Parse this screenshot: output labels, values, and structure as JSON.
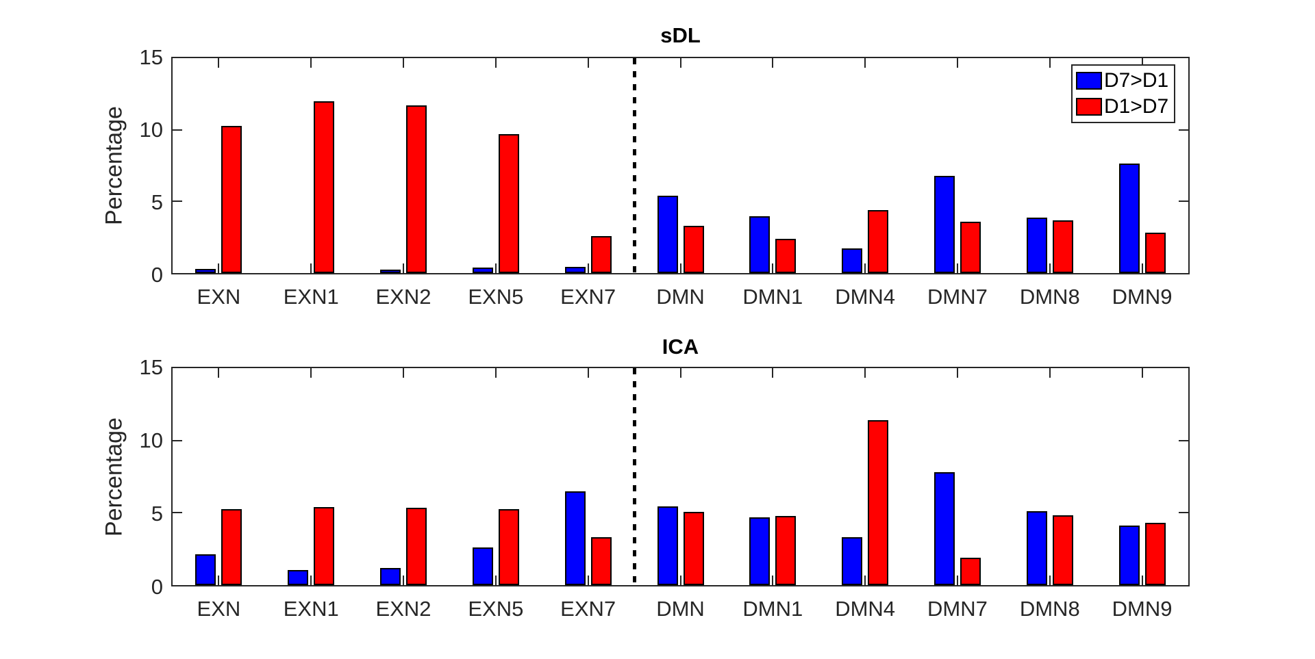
{
  "figure": {
    "background": "#ffffff"
  },
  "legend": {
    "position": "top-right",
    "items": [
      {
        "label": "D7>D1",
        "color": "#0000ff"
      },
      {
        "label": "D1>D7",
        "color": "#ff0000"
      }
    ]
  },
  "chart_data": [
    {
      "type": "bar",
      "title": "sDL",
      "xlabel": "",
      "ylabel": "Percentage",
      "ylim": [
        0,
        15
      ],
      "yticks": [
        0,
        5,
        10,
        15
      ],
      "grid": false,
      "legend_position": "top-right",
      "separator_after_index": 4,
      "separator_style": "dotted-vertical-line",
      "categories": [
        "EXN",
        "EXN1",
        "EXN2",
        "EXN5",
        "EXN7",
        "DMN",
        "DMN1",
        "DMN4",
        "DMN7",
        "DMN8",
        "DMN9"
      ],
      "series": [
        {
          "name": "D7>D1",
          "color": "#0000ff",
          "values": [
            0.3,
            0.0,
            0.25,
            0.4,
            0.45,
            5.4,
            3.95,
            1.7,
            6.8,
            3.85,
            7.65
          ]
        },
        {
          "name": "D1>D7",
          "color": "#ff0000",
          "values": [
            10.25,
            12.0,
            11.7,
            9.7,
            2.6,
            3.3,
            2.4,
            4.4,
            3.6,
            3.7,
            2.8
          ]
        }
      ]
    },
    {
      "type": "bar",
      "title": "ICA",
      "xlabel": "",
      "ylabel": "Percentage",
      "ylim": [
        0,
        15
      ],
      "yticks": [
        0,
        5,
        10,
        15
      ],
      "grid": false,
      "legend_position": "none",
      "separator_after_index": 4,
      "separator_style": "dotted-vertical-line",
      "categories": [
        "EXN",
        "EXN1",
        "EXN2",
        "EXN5",
        "EXN7",
        "DMN",
        "DMN1",
        "DMN4",
        "DMN7",
        "DMN8",
        "DMN9"
      ],
      "series": [
        {
          "name": "D7>D1",
          "color": "#0000ff",
          "values": [
            2.15,
            1.05,
            1.2,
            2.6,
            6.5,
            5.45,
            4.7,
            3.3,
            7.8,
            5.1,
            4.1
          ]
        },
        {
          "name": "D1>D7",
          "color": "#ff0000",
          "values": [
            5.25,
            5.4,
            5.35,
            5.25,
            3.3,
            5.05,
            4.8,
            11.4,
            1.9,
            4.85,
            4.3
          ]
        }
      ]
    }
  ]
}
